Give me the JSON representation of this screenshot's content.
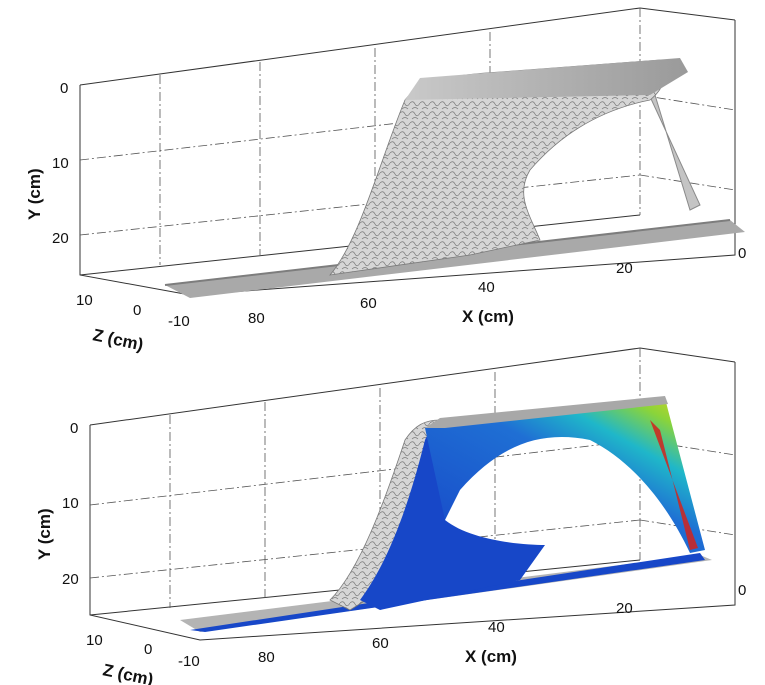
{
  "panels": [
    {
      "variant": "surface-only",
      "y_axis_label": "Y (cm)",
      "x_axis_label": "X (cm)",
      "z_axis_label": "Z (cm)",
      "y_ticks": [
        "0",
        "10",
        "20"
      ],
      "x_ticks": [
        "80",
        "60",
        "40",
        "20",
        "0"
      ],
      "z_ticks": [
        "10",
        "0",
        "-10"
      ]
    },
    {
      "variant": "surface-with-colored-section",
      "y_axis_label": "Y (cm)",
      "x_axis_label": "X (cm)",
      "z_axis_label": "Z (cm)",
      "y_ticks": [
        "0",
        "10",
        "20"
      ],
      "x_ticks": [
        "80",
        "60",
        "40",
        "20",
        "0"
      ],
      "z_ticks": [
        "10",
        "0",
        "-10"
      ]
    }
  ],
  "colors": {
    "surface": "#c9c9c9",
    "surface_dark": "#8a8a8a",
    "section_low": "#1747c8",
    "section_mid": "#1fb7c9",
    "section_high": "#e8d21a",
    "section_peak": "#d2231c"
  }
}
